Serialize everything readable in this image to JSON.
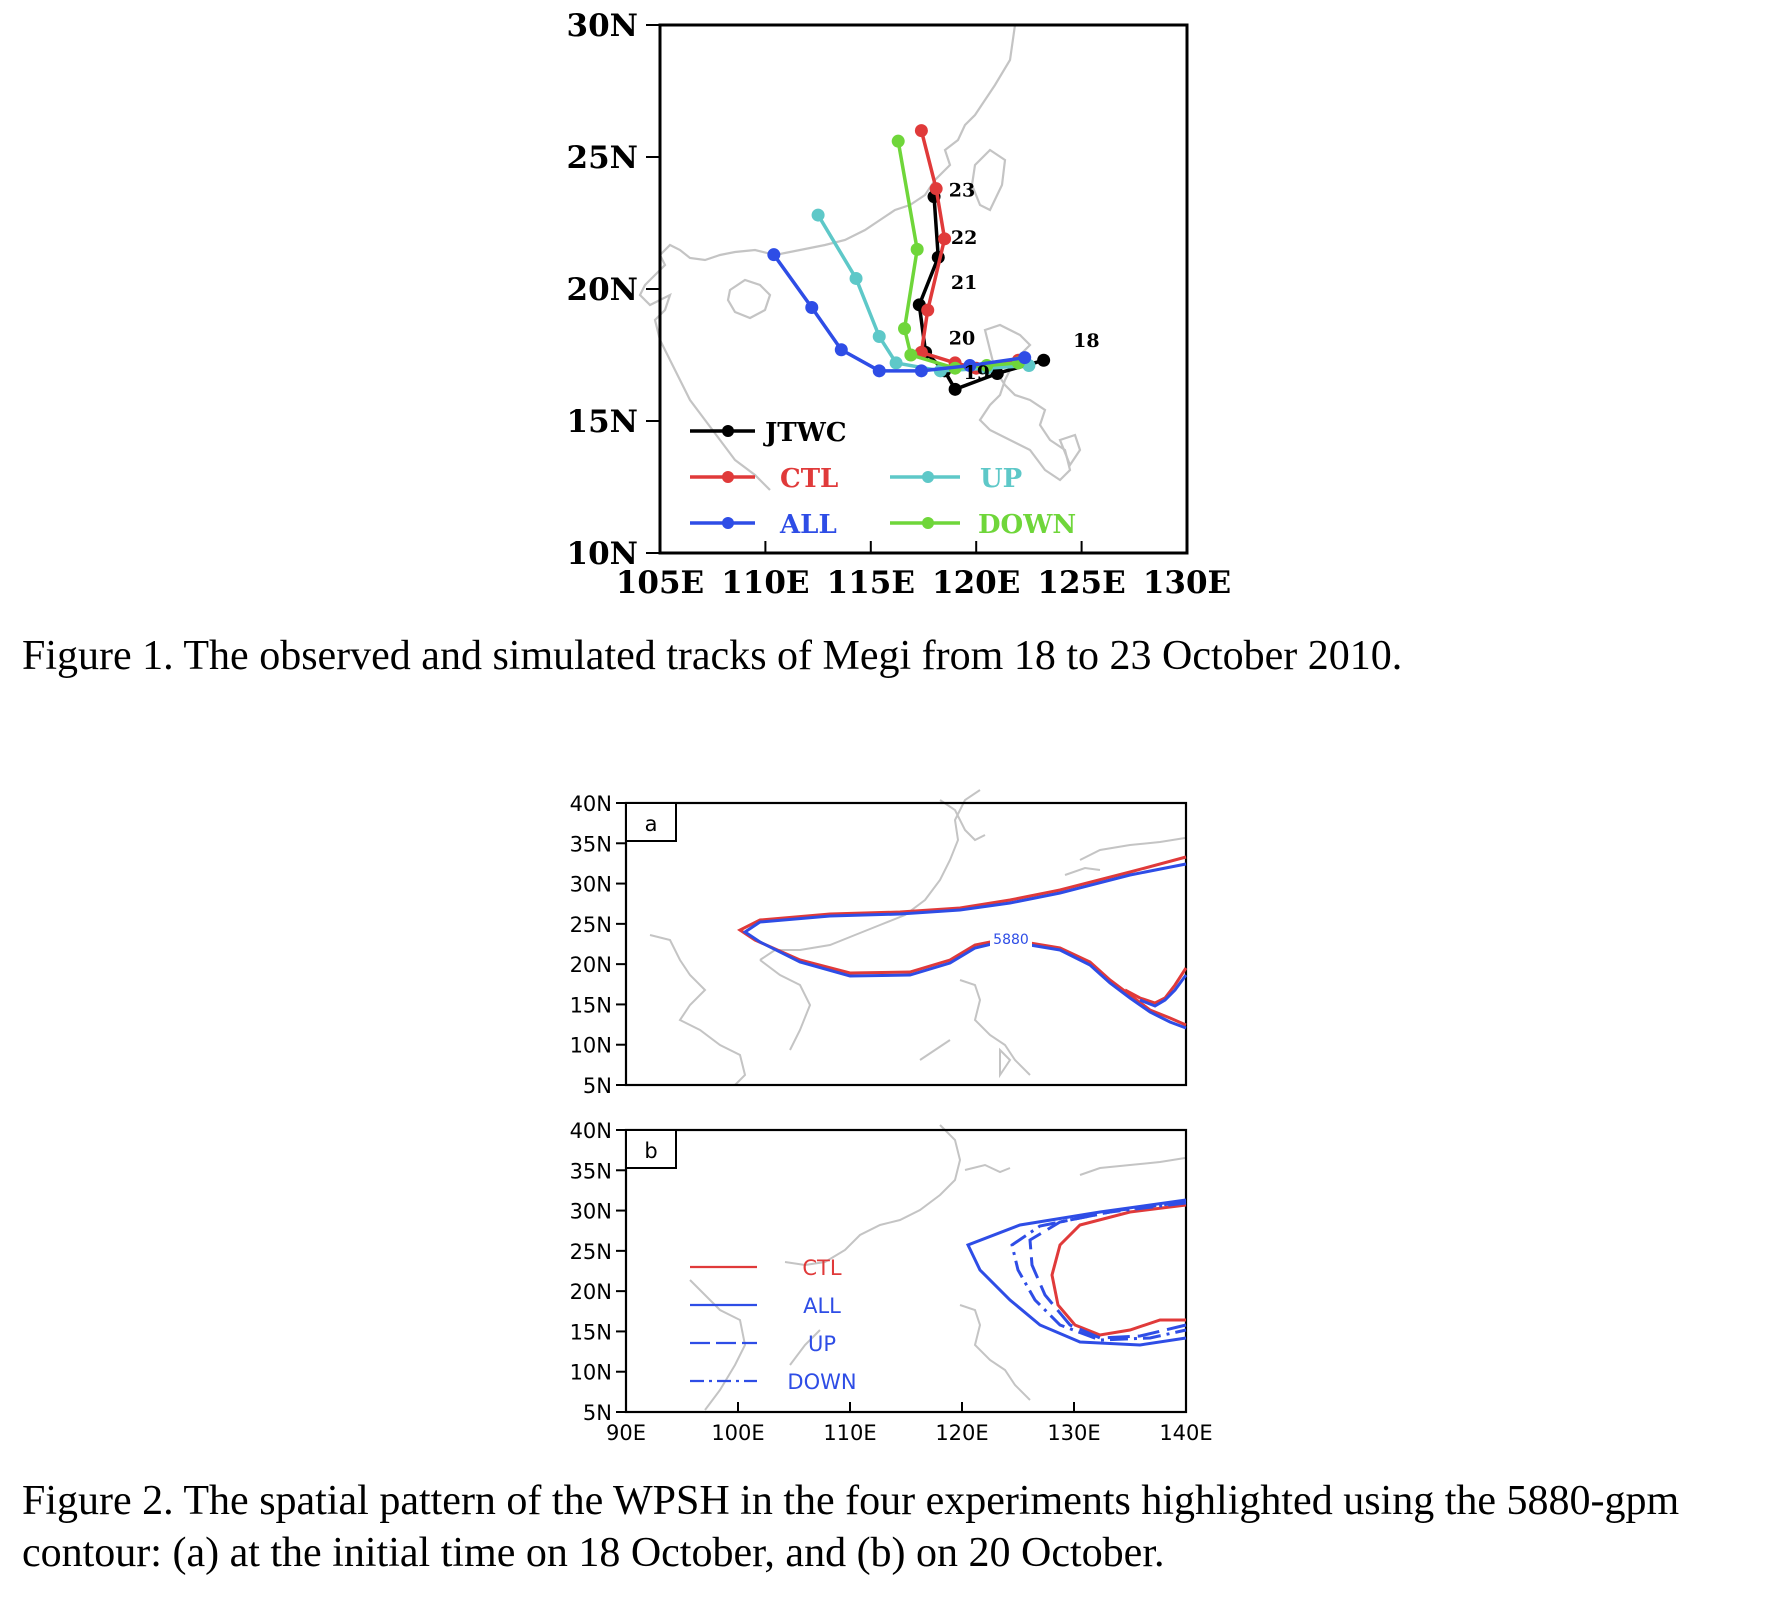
{
  "figure1": {
    "caption": "Figure 1. The observed and simulated tracks of Megi from 18 to 23 October 2010.",
    "chart_data": {
      "type": "line",
      "x_tick_labels": [
        "105E",
        "110E",
        "115E",
        "120E",
        "125E",
        "130E"
      ],
      "y_tick_labels": [
        "10N",
        "15N",
        "20N",
        "25N",
        "30N"
      ],
      "xlim": [
        105,
        130
      ],
      "ylim": [
        10,
        30
      ],
      "day_labels": [
        {
          "text": "18",
          "lon": 124.6,
          "lat": 17.8
        },
        {
          "text": "19",
          "lon": 119.4,
          "lat": 16.6
        },
        {
          "text": "20",
          "lon": 118.7,
          "lat": 17.9
        },
        {
          "text": "21",
          "lon": 118.8,
          "lat": 20.0
        },
        {
          "text": "22",
          "lon": 118.8,
          "lat": 21.7
        },
        {
          "text": "23",
          "lon": 118.7,
          "lat": 23.5
        }
      ],
      "series": [
        {
          "name": "JTWC",
          "color": "#000000",
          "points": [
            [
              123.2,
              17.3
            ],
            [
              121.0,
              16.8
            ],
            [
              119.0,
              16.2
            ],
            [
              118.5,
              16.9
            ],
            [
              117.6,
              17.6
            ],
            [
              117.3,
              19.4
            ],
            [
              118.2,
              21.2
            ],
            [
              118.0,
              23.5
            ]
          ]
        },
        {
          "name": "CTL",
          "color": "#e03a3a",
          "points": [
            [
              122.0,
              17.3
            ],
            [
              120.0,
              17.0
            ],
            [
              119.0,
              17.2
            ],
            [
              117.4,
              17.6
            ],
            [
              117.7,
              19.2
            ],
            [
              118.5,
              21.9
            ],
            [
              118.1,
              23.8
            ],
            [
              117.4,
              26.0
            ]
          ]
        },
        {
          "name": "UP",
          "color": "#5ec8c8",
          "points": [
            [
              122.5,
              17.1
            ],
            [
              120.5,
              17.0
            ],
            [
              118.3,
              16.9
            ],
            [
              116.2,
              17.2
            ],
            [
              115.4,
              18.2
            ],
            [
              114.3,
              20.4
            ],
            [
              112.5,
              22.8
            ]
          ]
        },
        {
          "name": "DOWN",
          "color": "#6fd63a",
          "points": [
            [
              122.0,
              17.2
            ],
            [
              120.5,
              17.1
            ],
            [
              119.0,
              17.0
            ],
            [
              116.9,
              17.5
            ],
            [
              116.6,
              18.5
            ],
            [
              117.2,
              21.5
            ],
            [
              116.3,
              25.6
            ]
          ]
        },
        {
          "name": "ALL",
          "color": "#2e4de6",
          "points": [
            [
              122.3,
              17.4
            ],
            [
              119.7,
              17.1
            ],
            [
              117.4,
              16.9
            ],
            [
              115.4,
              16.9
            ],
            [
              113.6,
              17.7
            ],
            [
              112.2,
              19.3
            ],
            [
              110.4,
              21.3
            ]
          ]
        }
      ]
    },
    "legend": [
      {
        "label": "JTWC",
        "color": "#000000"
      },
      {
        "label": "CTL",
        "color": "#e03a3a"
      },
      {
        "label": "ALL",
        "color": "#2e4de6"
      },
      {
        "label": "UP",
        "color": "#5ec8c8"
      },
      {
        "label": "DOWN",
        "color": "#6fd63a"
      }
    ]
  },
  "figure2": {
    "caption": "Figure 2. The spatial pattern of the WPSH in the four experiments highlighted using the 5880-gpm contour: (a) at the initial time on 18 October, and (b) on 20 October.",
    "panels": [
      {
        "label": "a",
        "contour_label": "5880"
      },
      {
        "label": "b"
      }
    ],
    "chart_data": {
      "type": "line",
      "x_tick_labels": [
        "90E",
        "100E",
        "110E",
        "120E",
        "130E",
        "140E"
      ],
      "y_tick_labels": [
        "5N",
        "10N",
        "15N",
        "20N",
        "25N",
        "30N",
        "35N",
        "40N"
      ],
      "xlim": [
        90,
        140
      ],
      "ylim": [
        5,
        40
      ],
      "legend": [
        {
          "label": "CTL",
          "color": "#e03a3a",
          "style": "solid"
        },
        {
          "label": "ALL",
          "color": "#2e4de6",
          "style": "solid"
        },
        {
          "label": "UP",
          "color": "#2e4de6",
          "style": "dashed"
        },
        {
          "label": "DOWN",
          "color": "#2e4de6",
          "style": "dash-dot"
        }
      ]
    }
  }
}
